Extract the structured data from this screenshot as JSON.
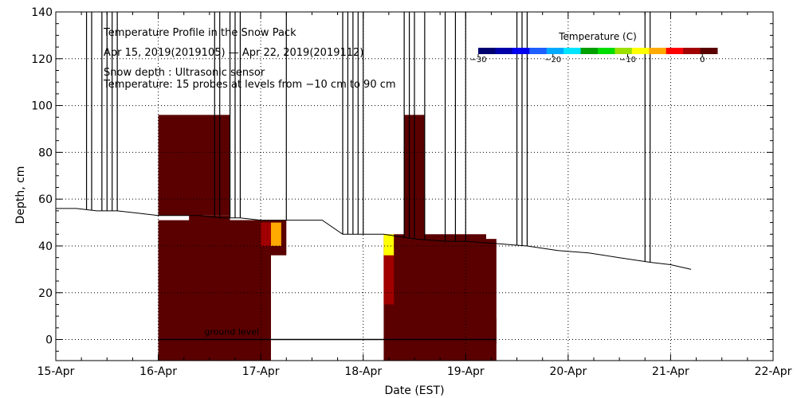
{
  "chart_data": {
    "type": "heatmap",
    "title": "Temperature Profile in the Snow Pack",
    "subtitle": "Apr 15, 2019(2019105) — Apr 22, 2019(2019112)",
    "info_lines": [
      "Snow depth : Ultrasonic sensor",
      "Temperature: 15 probes at levels from −10 cm to 90 cm"
    ],
    "xlabel": "Date (EST)",
    "ylabel": "Depth, cm",
    "x_ticks": [
      "15-Apr",
      "16-Apr",
      "17-Apr",
      "18-Apr",
      "19-Apr",
      "20-Apr",
      "21-Apr",
      "22-Apr"
    ],
    "xlim_days": [
      15,
      22
    ],
    "ylim": [
      -9,
      140
    ],
    "y_ticks": [
      0,
      20,
      40,
      60,
      80,
      100,
      120,
      140
    ],
    "grid": true,
    "ground_label": "ground level",
    "colorbar": {
      "title": "Temperature (C)",
      "range": [
        -30,
        2
      ],
      "tick_labels": [
        "−30",
        "−20",
        "−10",
        "0"
      ],
      "tick_values": [
        -30,
        -20,
        -10,
        0
      ],
      "colors": [
        "#000070",
        "#0000aa",
        "#0000ee",
        "#1f5fff",
        "#00aaff",
        "#00e5ff",
        "#00a000",
        "#00dd00",
        "#9be000",
        "#ffff00",
        "#ffaa00",
        "#ff0000",
        "#a00000",
        "#5a0000"
      ]
    },
    "snow_depth": {
      "x": [
        15.0,
        15.2,
        15.4,
        15.6,
        15.8,
        16.0,
        16.2,
        16.4,
        16.6,
        16.8,
        17.0,
        17.3,
        17.6,
        17.8,
        18.0,
        18.2,
        18.5,
        18.8,
        19.0,
        19.3,
        19.6,
        19.9,
        20.2,
        20.5,
        20.8,
        21.0,
        21.2
      ],
      "y": [
        56,
        56,
        55,
        55,
        54,
        53,
        53,
        53,
        52,
        52,
        51,
        51,
        51,
        45,
        45,
        45,
        43,
        42,
        42,
        41,
        40,
        38,
        37,
        35,
        33,
        32,
        30
      ]
    },
    "heatmap_blocks": [
      {
        "x0": 16.0,
        "x1": 17.1,
        "y0": -10,
        "y1": 51,
        "value": 0.5
      },
      {
        "x0": 16.0,
        "x1": 16.7,
        "y0": 53,
        "y1": 96,
        "value": 1.5
      },
      {
        "x0": 16.3,
        "x1": 16.7,
        "y0": 30,
        "y1": 53,
        "value": 1.5
      },
      {
        "x0": 16.7,
        "x1": 17.1,
        "y0": 42,
        "y1": 51,
        "value": 1.0
      },
      {
        "x0": 16.6,
        "x1": 16.8,
        "y0": -2,
        "y1": 9,
        "value": 1.5
      },
      {
        "x0": 17.1,
        "x1": 17.25,
        "y0": 36,
        "y1": 51,
        "value": 0.5
      },
      {
        "x0": 17.0,
        "x1": 17.1,
        "y0": 40,
        "y1": 50,
        "value": -2.5
      },
      {
        "x0": 17.1,
        "x1": 17.2,
        "y0": 40,
        "y1": 50,
        "value": -5.0
      },
      {
        "x0": 18.2,
        "x1": 19.3,
        "y0": -10,
        "y1": 43,
        "value": 0.5
      },
      {
        "x0": 18.2,
        "x1": 18.3,
        "y0": 15,
        "y1": 45,
        "value": -2.5
      },
      {
        "x0": 18.2,
        "x1": 18.3,
        "y0": 36,
        "y1": 45,
        "value": -8.0
      },
      {
        "x0": 18.3,
        "x1": 19.2,
        "y0": 25,
        "y1": 45,
        "value": 1.5
      },
      {
        "x0": 18.4,
        "x1": 18.6,
        "y0": 30,
        "y1": 96,
        "value": 1.5
      },
      {
        "x0": 18.5,
        "x1": 18.7,
        "y0": -2,
        "y1": 9,
        "value": 1.5
      },
      {
        "x0": 19.2,
        "x1": 19.3,
        "y0": -2,
        "y1": 9,
        "value": 1.5
      }
    ],
    "spikes_x": [
      15.3,
      15.35,
      15.45,
      15.5,
      15.55,
      15.6,
      16.55,
      16.6,
      16.7,
      16.75,
      16.8,
      17.25,
      17.8,
      17.85,
      17.9,
      17.95,
      18.0,
      18.4,
      18.45,
      18.5,
      18.6,
      18.8,
      18.9,
      19.0,
      19.5,
      19.55,
      19.6,
      20.75,
      20.8
    ]
  }
}
